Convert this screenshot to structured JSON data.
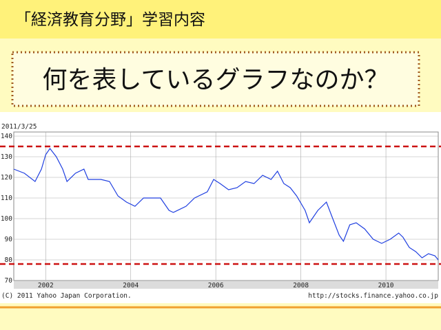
{
  "header": {
    "title": "「経済教育分野」学習内容",
    "question": "何を表しているグラフなのか？"
  },
  "chart_data": {
    "type": "line",
    "date_label": "2011/3/25",
    "copyright": "(C) 2011 Yahoo Japan Corporation.",
    "source": "http://stocks.finance.yahoo.co.jp",
    "x": [
      2001.25,
      2001.5,
      2001.75,
      2001.9,
      2002.0,
      2002.1,
      2002.25,
      2002.4,
      2002.5,
      2002.7,
      2002.9,
      2003.0,
      2003.3,
      2003.5,
      2003.7,
      2003.9,
      2004.1,
      2004.3,
      2004.5,
      2004.7,
      2004.9,
      2005.0,
      2005.3,
      2005.5,
      2005.8,
      2005.95,
      2006.1,
      2006.3,
      2006.5,
      2006.7,
      2006.9,
      2007.1,
      2007.3,
      2007.45,
      2007.6,
      2007.75,
      2007.9,
      2008.1,
      2008.2,
      2008.4,
      2008.6,
      2008.75,
      2008.9,
      2009.0,
      2009.15,
      2009.3,
      2009.5,
      2009.7,
      2009.9,
      2010.1,
      2010.3,
      2010.4,
      2010.55,
      2010.7,
      2010.85,
      2011.0,
      2011.15,
      2011.23
    ],
    "series": [
      {
        "color": "#1f3fe0",
        "values": [
          124,
          122,
          118,
          124,
          131,
          134,
          130,
          124,
          118,
          122,
          124,
          119,
          119,
          118,
          111,
          108,
          106,
          110,
          110,
          110,
          104,
          103,
          106,
          110,
          113,
          119,
          117,
          114,
          115,
          118,
          117,
          121,
          119,
          123,
          117,
          115,
          111,
          104,
          98,
          104,
          108,
          100,
          92,
          89,
          97,
          98,
          95,
          90,
          88,
          90,
          93,
          91,
          86,
          84,
          81,
          83,
          82,
          80
        ]
      }
    ],
    "xlim": [
      2001.25,
      2011.23
    ],
    "xticks": [
      2002,
      2004,
      2006,
      2008,
      2010
    ],
    "ylim": [
      70,
      142
    ],
    "yticks": [
      70,
      80,
      90,
      100,
      110,
      120,
      130,
      140
    ],
    "grid": true,
    "reference_lines": [
      135,
      78
    ],
    "reference_color": "#cc1111"
  }
}
